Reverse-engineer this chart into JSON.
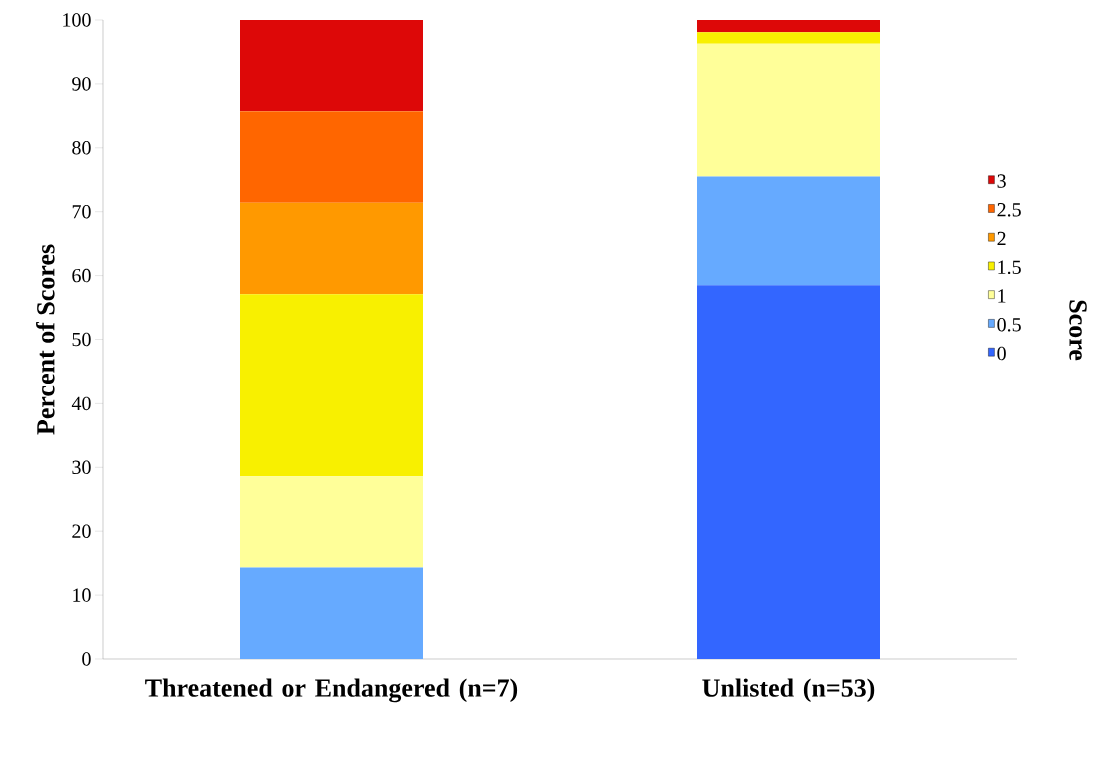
{
  "chart_data": {
    "type": "bar",
    "stacked": true,
    "ylabel": "Percent of Scores",
    "legend_title": "Score",
    "legend": "right",
    "categories": [
      "Threatened or Endangered (n=7)",
      "Unlisted (n=53)"
    ],
    "ylim": [
      0,
      100
    ],
    "yticks": [
      0,
      10,
      20,
      30,
      40,
      50,
      60,
      70,
      80,
      90,
      100
    ],
    "series": [
      {
        "name": "0",
        "color": "#3366ff",
        "values": [
          0,
          58.5
        ]
      },
      {
        "name": "0.5",
        "color": "#66aaff",
        "values": [
          14.3,
          17.0
        ]
      },
      {
        "name": "1",
        "color": "#ffff99",
        "values": [
          14.3,
          20.8
        ]
      },
      {
        "name": "1.5",
        "color": "#f8f000",
        "values": [
          28.5,
          1.8
        ]
      },
      {
        "name": "2",
        "color": "#ff9900",
        "values": [
          14.3,
          0
        ]
      },
      {
        "name": "2.5",
        "color": "#ff6600",
        "values": [
          14.3,
          0
        ]
      },
      {
        "name": "3",
        "color": "#dd0808",
        "values": [
          14.3,
          1.9
        ]
      }
    ]
  }
}
